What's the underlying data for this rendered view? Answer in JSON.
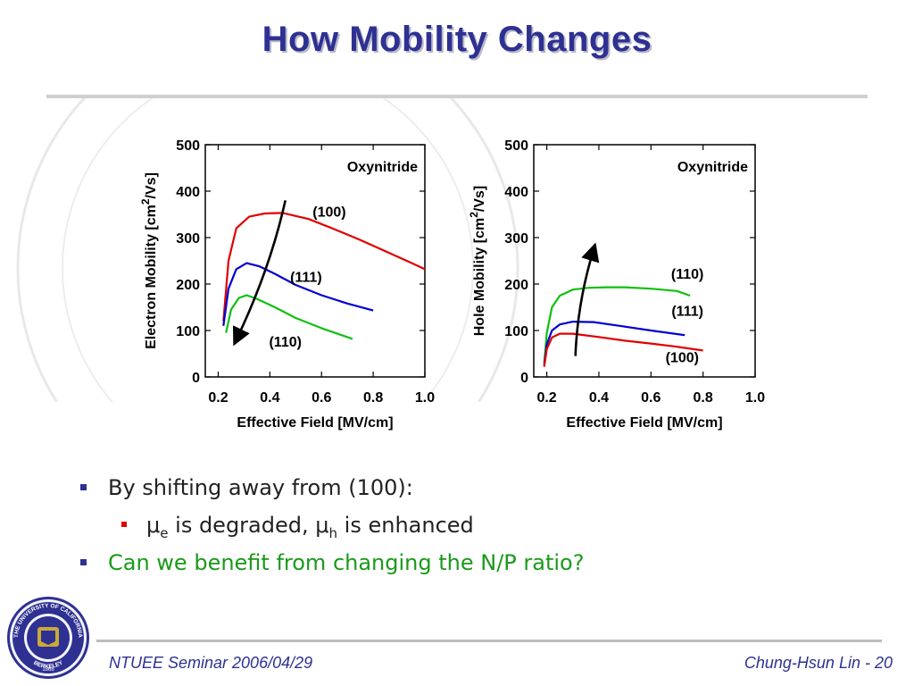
{
  "slide": {
    "title": "How Mobility Changes",
    "bullets": [
      {
        "text": "By shifting away from (100):"
      },
      {
        "mu1": "μ",
        "sub1": "e",
        "mid": " is degraded, ",
        "mu2": "μ",
        "sub2": "h",
        "tail": " is enhanced"
      },
      {
        "text": "Can we benefit from changing the N/P ratio?",
        "color": "#1a9a1a"
      }
    ],
    "footer_left": "NTUEE Seminar 2006/04/29",
    "footer_right_author": "Chung-Hsun Lin - ",
    "footer_right_page": "20",
    "seal": {
      "top": "THE UNIVERSITY OF CALIFORNIA",
      "bottom": "BERKELEY",
      "year": "1868"
    }
  },
  "chart_data": [
    {
      "type": "line",
      "title": "",
      "xlabel": "Effective Field [MV/cm]",
      "ylabel_main": "Electron Mobility [cm",
      "ylabel_sup": "2",
      "ylabel_end": "/Vs]",
      "xlim": [
        0.15,
        1.0
      ],
      "ylim": [
        0,
        500
      ],
      "xticks": [
        0.2,
        0.4,
        0.6,
        0.8,
        1.0
      ],
      "xtick_labels": [
        "0.2",
        "0.4",
        "0.6",
        "0.8",
        "1.0"
      ],
      "yticks": [
        0,
        100,
        200,
        300,
        400,
        500
      ],
      "ytick_labels": [
        "0",
        "100",
        "200",
        "300",
        "400",
        "500"
      ],
      "annotation": "Oxynitride",
      "arrow": {
        "from": [
          0.46,
          380
        ],
        "to": [
          0.27,
          80
        ]
      },
      "series": [
        {
          "name": "(100)",
          "color": "#e00000",
          "label_at": [
            0.63,
            345
          ],
          "x": [
            0.22,
            0.24,
            0.27,
            0.32,
            0.38,
            0.45,
            0.55,
            0.65,
            0.75,
            0.85,
            0.95,
            1.0
          ],
          "y": [
            120,
            250,
            320,
            345,
            352,
            353,
            340,
            318,
            295,
            270,
            245,
            232
          ]
        },
        {
          "name": "(111)",
          "color": "#0000d0",
          "label_at": [
            0.54,
            205
          ],
          "x": [
            0.22,
            0.24,
            0.27,
            0.31,
            0.36,
            0.42,
            0.5,
            0.6,
            0.7,
            0.8
          ],
          "y": [
            110,
            190,
            232,
            245,
            238,
            222,
            198,
            176,
            158,
            143
          ]
        },
        {
          "name": "(110)",
          "color": "#10c010",
          "label_at": [
            0.46,
            65
          ],
          "x": [
            0.23,
            0.25,
            0.28,
            0.31,
            0.35,
            0.42,
            0.5,
            0.6,
            0.72
          ],
          "y": [
            95,
            145,
            170,
            176,
            168,
            150,
            127,
            105,
            82
          ]
        }
      ]
    },
    {
      "type": "line",
      "title": "",
      "xlabel": "Effective Field [MV/cm]",
      "ylabel_main": "Hole Mobility [cm",
      "ylabel_sup": "2",
      "ylabel_end": "/Vs]",
      "xlim": [
        0.15,
        1.0
      ],
      "ylim": [
        0,
        500
      ],
      "xticks": [
        0.2,
        0.4,
        0.6,
        0.8,
        1.0
      ],
      "xtick_labels": [
        "0.2",
        "0.4",
        "0.6",
        "0.8",
        "1.0"
      ],
      "yticks": [
        0,
        100,
        200,
        300,
        400,
        500
      ],
      "ytick_labels": [
        "0",
        "100",
        "200",
        "300",
        "400",
        "500"
      ],
      "annotation": "Oxynitride",
      "arrow": {
        "from": [
          0.31,
          45
        ],
        "to": [
          0.38,
          275
        ]
      },
      "series": [
        {
          "name": "(110)",
          "color": "#10c010",
          "label_at": [
            0.74,
            212
          ],
          "x": [
            0.19,
            0.2,
            0.22,
            0.25,
            0.3,
            0.36,
            0.43,
            0.5,
            0.6,
            0.7,
            0.75
          ],
          "y": [
            30,
            95,
            150,
            175,
            188,
            192,
            193,
            193,
            190,
            185,
            175
          ]
        },
        {
          "name": "(111)",
          "color": "#0000d0",
          "label_at": [
            0.74,
            132
          ],
          "x": [
            0.19,
            0.2,
            0.22,
            0.25,
            0.3,
            0.38,
            0.48,
            0.6,
            0.73
          ],
          "y": [
            25,
            70,
            100,
            113,
            119,
            118,
            110,
            100,
            90
          ]
        },
        {
          "name": "(100)",
          "color": "#e00000",
          "label_at": [
            0.72,
            32
          ],
          "x": [
            0.19,
            0.2,
            0.22,
            0.25,
            0.3,
            0.4,
            0.5,
            0.6,
            0.7,
            0.8
          ],
          "y": [
            22,
            60,
            85,
            93,
            93,
            86,
            78,
            72,
            65,
            57
          ]
        }
      ]
    }
  ]
}
